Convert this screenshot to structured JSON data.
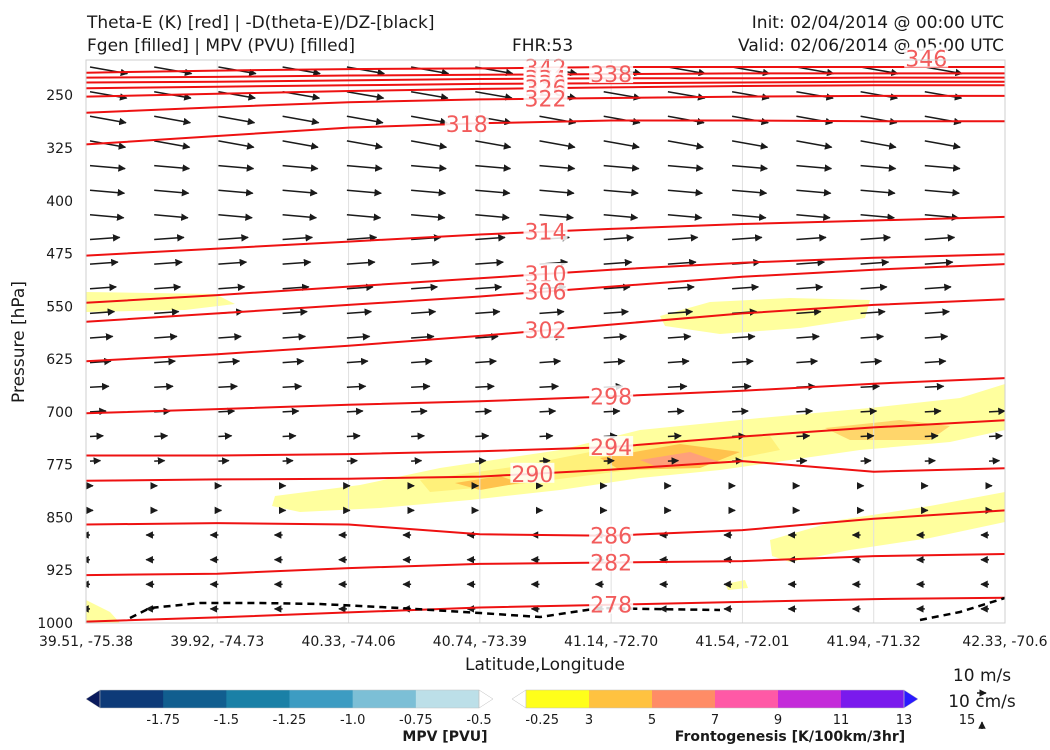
{
  "header": {
    "title_line1": "Theta-E (K) [red] | -D(theta-E)/DZ-[black]",
    "title_line2": "Fgen [filled] | MPV (PVU) [filled]",
    "fhr": "FHR:53",
    "init": "Init: 02/04/2014 @ 00:00 UTC",
    "valid": "Valid: 02/06/2014 @ 05:00 UTC"
  },
  "chart_data": {
    "type": "cross-section",
    "xlabel": "Latitude,Longitude",
    "ylabel": "Pressure [hPa]",
    "x_ticks": [
      "39.51, -75.38",
      "39.92, -74.73",
      "40.33, -74.06",
      "40.74, -73.39",
      "41.14, -72.70",
      "41.54, -72.01",
      "41.94, -71.32",
      "42.33, -70.6"
    ],
    "y_ticks": [
      250,
      325,
      400,
      475,
      550,
      625,
      700,
      775,
      850,
      925,
      1000
    ],
    "ylim": [
      1000,
      200
    ],
    "contour_labels": [
      "342",
      "338",
      "334",
      "330",
      "326",
      "322",
      "318",
      "314",
      "310",
      "306",
      "302",
      "298",
      "294",
      "290",
      "286",
      "282",
      "278",
      "346"
    ],
    "contours": [
      {
        "value": 346,
        "p": [
          198,
          198,
          198,
          198,
          198,
          198,
          198,
          198
        ]
      },
      {
        "value": 342,
        "p": [
          218,
          215,
          213,
          212,
          210,
          210,
          210,
          210
        ]
      },
      {
        "value": 338,
        "p": [
          225,
          224,
          222,
          221,
          220,
          219,
          219,
          219
        ]
      },
      {
        "value": 334,
        "p": [
          232,
          231,
          229,
          227,
          226,
          226,
          225,
          225
        ]
      },
      {
        "value": 330,
        "p": [
          240,
          238,
          236,
          234,
          233,
          232,
          231,
          231
        ]
      },
      {
        "value": 326,
        "p": [
          252,
          248,
          244,
          241,
          239,
          237,
          236,
          236
        ]
      },
      {
        "value": 322,
        "p": [
          275,
          267,
          260,
          256,
          254,
          252,
          251,
          251
        ]
      },
      {
        "value": 318,
        "p": [
          320,
          308,
          296,
          290,
          286,
          286,
          287,
          287
        ]
      },
      {
        "value": 314,
        "p": [
          478,
          468,
          458,
          448,
          440,
          433,
          428,
          423
        ]
      },
      {
        "value": 310,
        "p": [
          545,
          534,
          522,
          510,
          498,
          488,
          481,
          476
        ]
      },
      {
        "value": 306,
        "p": [
          572,
          560,
          548,
          536,
          522,
          508,
          498,
          490
        ]
      },
      {
        "value": 302,
        "p": [
          628,
          618,
          606,
          592,
          576,
          560,
          548,
          540
        ]
      },
      {
        "value": 298,
        "p": [
          702,
          696,
          690,
          685,
          678,
          670,
          660,
          652
        ]
      },
      {
        "value": 294,
        "p": [
          762,
          762,
          760,
          756,
          750,
          735,
          722,
          712
        ]
      },
      {
        "value": 290,
        "p": [
          798,
          796,
          795,
          792,
          782,
          770,
          785,
          780
        ]
      },
      {
        "value": 286,
        "p": [
          860,
          858,
          860,
          874,
          876,
          868,
          852,
          840
        ]
      },
      {
        "value": 282,
        "p": [
          932,
          930,
          922,
          916,
          914,
          912,
          905,
          902
        ]
      },
      {
        "value": 278,
        "p": [
          998,
          992,
          985,
          978,
          974,
          970,
          966,
          964
        ]
      }
    ],
    "wind_vectors": "black arrows; westerly, strongest aloft, weakening and reversing near the surface",
    "fgen_colorbar": {
      "label": "Frontogenesis [K/100km/3hr]",
      "ticks": [
        "3",
        "5",
        "7",
        "9",
        "11",
        "13",
        "15"
      ],
      "colors": [
        "#ffffff",
        "#ffff1a",
        "#ffc240",
        "#ff8c66",
        "#ff59a6",
        "#c42bd9",
        "#7a1aed",
        "#2b1aff"
      ]
    },
    "mpv_colorbar": {
      "label": "MPV [PVU]",
      "ticks": [
        "-1.75",
        "-1.5",
        "-1.25",
        "-1.0",
        "-0.75",
        "-0.5",
        "-0.25"
      ],
      "colors": [
        "#0a1a5c",
        "#0d3a78",
        "#115e8f",
        "#1a80a6",
        "#3d9cc2",
        "#7cbfd6",
        "#bcdfe8",
        "#ffffff"
      ]
    },
    "wind_scale": {
      "label1": "10 m/s",
      "label2": "10 cm/s"
    }
  }
}
